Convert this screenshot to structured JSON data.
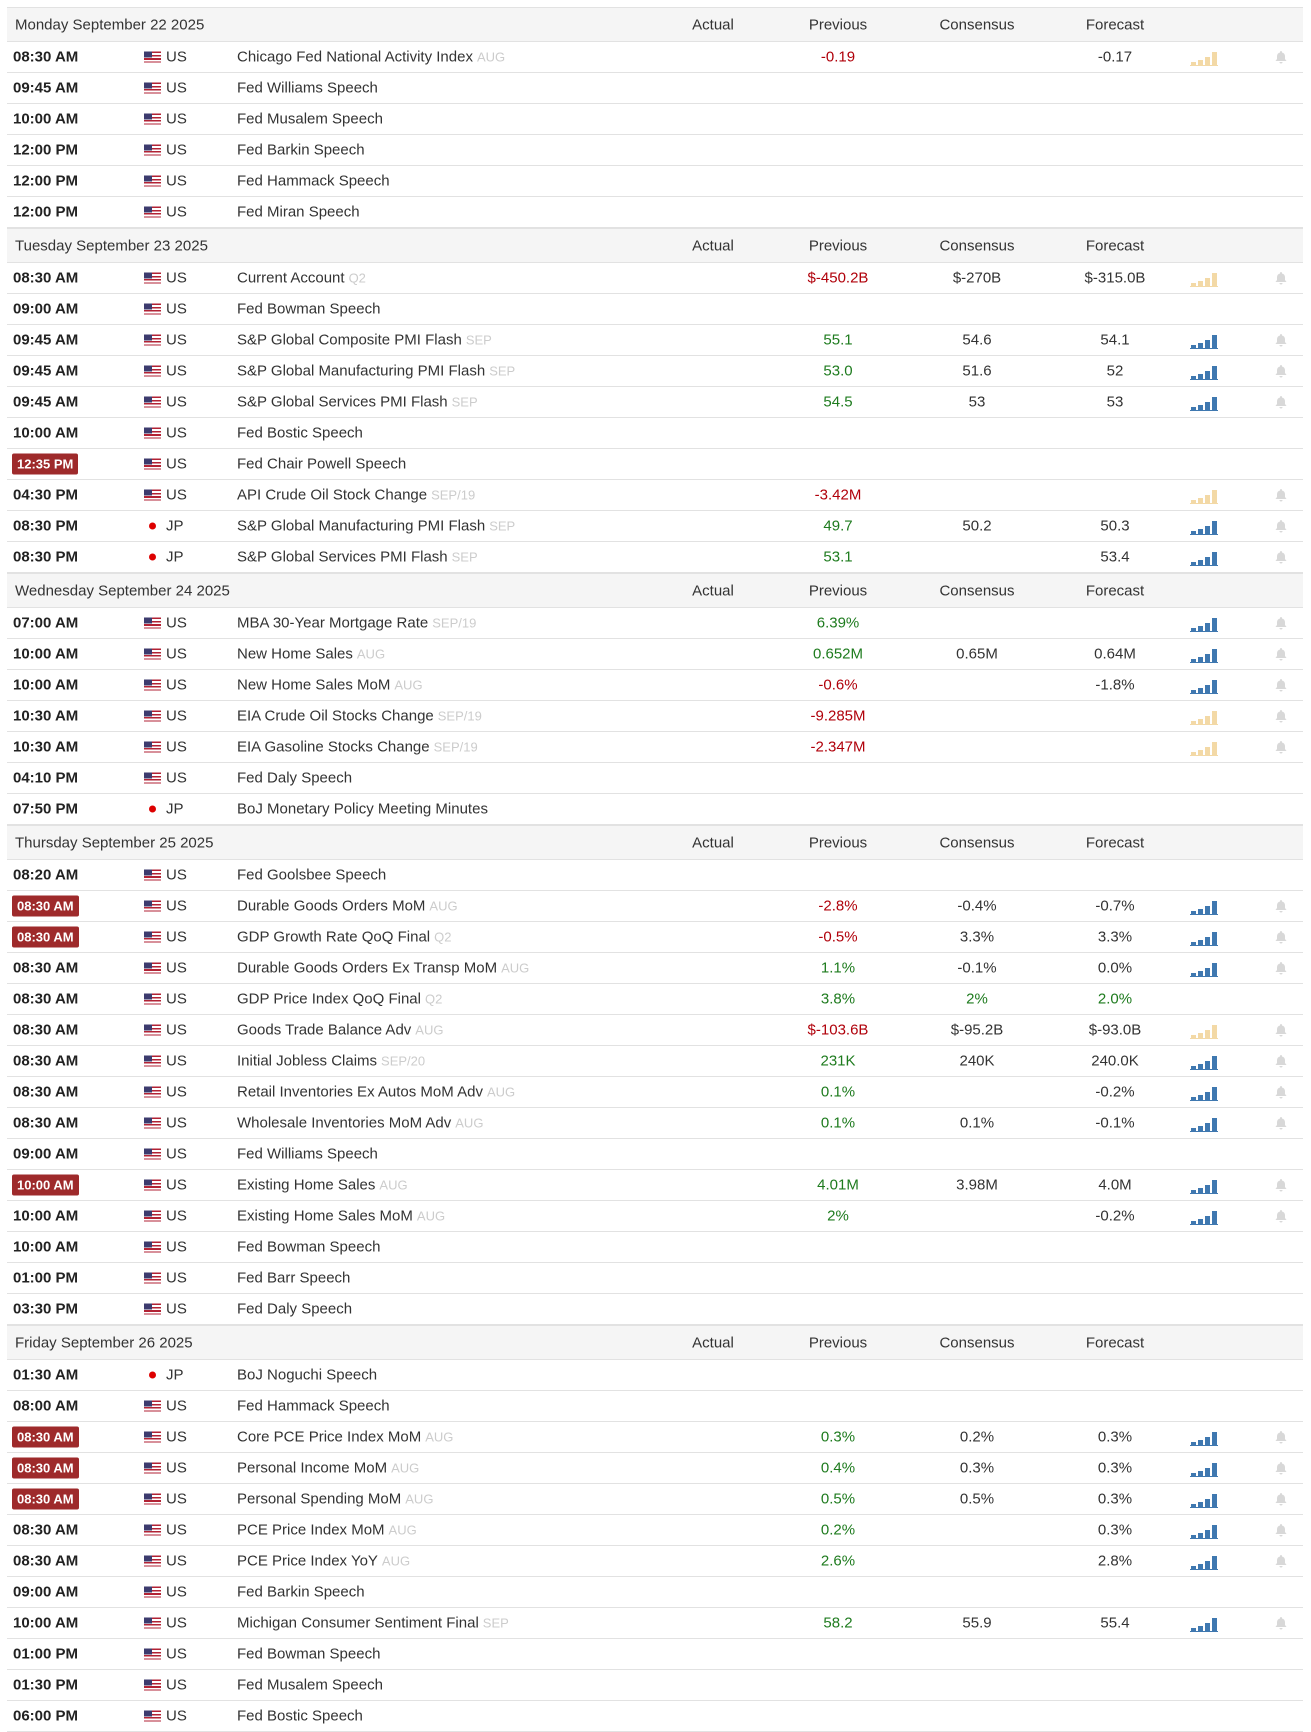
{
  "columns": [
    "Actual",
    "Previous",
    "Consensus",
    "Forecast"
  ],
  "days": [
    {
      "title": "Monday September 22 2025",
      "events": [
        {
          "t": "08:30 AM",
          "c": "US",
          "e": "Chicago Fed National Activity Index",
          "p": "AUG",
          "pv": "-0.19",
          "pc": "red",
          "fc": "-0.17",
          "spark": "tan"
        },
        {
          "t": "09:45 AM",
          "c": "US",
          "e": "Fed Williams Speech"
        },
        {
          "t": "10:00 AM",
          "c": "US",
          "e": "Fed Musalem Speech"
        },
        {
          "t": "12:00 PM",
          "c": "US",
          "e": "Fed Barkin Speech"
        },
        {
          "t": "12:00 PM",
          "c": "US",
          "e": "Fed Hammack Speech"
        },
        {
          "t": "12:00 PM",
          "c": "US",
          "e": "Fed Miran Speech"
        }
      ]
    },
    {
      "title": "Tuesday September 23 2025",
      "events": [
        {
          "t": "08:30 AM",
          "c": "US",
          "e": "Current Account",
          "p": "Q2",
          "pv": "$-450.2B",
          "pc": "red",
          "cs": "$-270B",
          "fc": "$-315.0B",
          "spark": "tan"
        },
        {
          "t": "09:00 AM",
          "c": "US",
          "e": "Fed Bowman Speech"
        },
        {
          "t": "09:45 AM",
          "c": "US",
          "e": "S&P Global Composite PMI Flash",
          "p": "SEP",
          "pv": "55.1",
          "pc": "green",
          "cs": "54.6",
          "fc": "54.1",
          "spark": "blue"
        },
        {
          "t": "09:45 AM",
          "c": "US",
          "e": "S&P Global Manufacturing PMI Flash",
          "p": "SEP",
          "pv": "53.0",
          "pc": "green",
          "cs": "51.6",
          "fc": "52",
          "spark": "blue"
        },
        {
          "t": "09:45 AM",
          "c": "US",
          "e": "S&P Global Services PMI Flash",
          "p": "SEP",
          "pv": "54.5",
          "pc": "green",
          "cs": "53",
          "fc": "53",
          "spark": "blue"
        },
        {
          "t": "10:00 AM",
          "c": "US",
          "e": "Fed Bostic Speech"
        },
        {
          "t": "12:35 PM",
          "hl": true,
          "c": "US",
          "e": "Fed Chair Powell Speech"
        },
        {
          "t": "04:30 PM",
          "c": "US",
          "e": "API Crude Oil Stock Change",
          "p": "SEP/19",
          "pv": "-3.42M",
          "pc": "red",
          "spark": "tan"
        },
        {
          "t": "08:30 PM",
          "c": "JP",
          "e": "S&P Global Manufacturing PMI Flash",
          "p": "SEP",
          "pv": "49.7",
          "pc": "green",
          "cs": "50.2",
          "fc": "50.3",
          "spark": "blue"
        },
        {
          "t": "08:30 PM",
          "c": "JP",
          "e": "S&P Global Services PMI Flash",
          "p": "SEP",
          "pv": "53.1",
          "pc": "green",
          "fc": "53.4",
          "spark": "blue"
        }
      ]
    },
    {
      "title": "Wednesday September 24 2025",
      "events": [
        {
          "t": "07:00 AM",
          "c": "US",
          "e": "MBA 30-Year Mortgage Rate",
          "p": "SEP/19",
          "pv": "6.39%",
          "pc": "green",
          "spark": "blue"
        },
        {
          "t": "10:00 AM",
          "c": "US",
          "e": "New Home Sales",
          "p": "AUG",
          "pv": "0.652M",
          "pc": "green",
          "cs": "0.65M",
          "fc": "0.64M",
          "spark": "blue"
        },
        {
          "t": "10:00 AM",
          "c": "US",
          "e": "New Home Sales MoM",
          "p": "AUG",
          "pv": "-0.6%",
          "pc": "red",
          "fc": "-1.8%",
          "spark": "blue"
        },
        {
          "t": "10:30 AM",
          "c": "US",
          "e": "EIA Crude Oil Stocks Change",
          "p": "SEP/19",
          "pv": "-9.285M",
          "pc": "red",
          "spark": "tan"
        },
        {
          "t": "10:30 AM",
          "c": "US",
          "e": "EIA Gasoline Stocks Change",
          "p": "SEP/19",
          "pv": "-2.347M",
          "pc": "red",
          "spark": "tan"
        },
        {
          "t": "04:10 PM",
          "c": "US",
          "e": "Fed Daly Speech"
        },
        {
          "t": "07:50 PM",
          "c": "JP",
          "e": "BoJ Monetary Policy Meeting Minutes"
        }
      ]
    },
    {
      "title": "Thursday September 25 2025",
      "events": [
        {
          "t": "08:20 AM",
          "c": "US",
          "e": "Fed Goolsbee Speech"
        },
        {
          "t": "08:30 AM",
          "hl": true,
          "c": "US",
          "e": "Durable Goods Orders MoM",
          "p": "AUG",
          "pv": "-2.8%",
          "pc": "red",
          "cs": "-0.4%",
          "fc": "-0.7%",
          "spark": "blue"
        },
        {
          "t": "08:30 AM",
          "hl": true,
          "c": "US",
          "e": "GDP Growth Rate QoQ Final",
          "p": "Q2",
          "pv": "-0.5%",
          "pc": "red",
          "cs": "3.3%",
          "fc": "3.3%",
          "spark": "blue"
        },
        {
          "t": "08:30 AM",
          "c": "US",
          "e": "Durable Goods Orders Ex Transp MoM",
          "p": "AUG",
          "pv": "1.1%",
          "pc": "green",
          "cs": "-0.1%",
          "fc": "0.0%",
          "spark": "blue"
        },
        {
          "t": "08:30 AM",
          "c": "US",
          "e": "GDP Price Index QoQ Final",
          "p": "Q2",
          "pv": "3.8%",
          "pc": "green",
          "cs": "2%",
          "cc": "green",
          "fc": "2.0%",
          "fcc": "green"
        },
        {
          "t": "08:30 AM",
          "c": "US",
          "e": "Goods Trade Balance Adv",
          "p": "AUG",
          "pv": "$-103.6B",
          "pc": "red",
          "cs": "$-95.2B",
          "fc": "$-93.0B",
          "spark": "tan"
        },
        {
          "t": "08:30 AM",
          "c": "US",
          "e": "Initial Jobless Claims",
          "p": "SEP/20",
          "pv": "231K",
          "pc": "green",
          "cs": "240K",
          "fc": "240.0K",
          "spark": "blue"
        },
        {
          "t": "08:30 AM",
          "c": "US",
          "e": "Retail Inventories Ex Autos MoM Adv",
          "p": "AUG",
          "pv": "0.1%",
          "pc": "green",
          "fc": "-0.2%",
          "spark": "blue"
        },
        {
          "t": "08:30 AM",
          "c": "US",
          "e": "Wholesale Inventories MoM Adv",
          "p": "AUG",
          "pv": "0.1%",
          "pc": "green",
          "cs": "0.1%",
          "fc": "-0.1%",
          "spark": "blue"
        },
        {
          "t": "09:00 AM",
          "c": "US",
          "e": "Fed Williams Speech"
        },
        {
          "t": "10:00 AM",
          "hl": true,
          "c": "US",
          "e": "Existing Home Sales",
          "p": "AUG",
          "pv": "4.01M",
          "pc": "green",
          "cs": "3.98M",
          "fc": "4.0M",
          "spark": "blue"
        },
        {
          "t": "10:00 AM",
          "c": "US",
          "e": "Existing Home Sales MoM",
          "p": "AUG",
          "pv": "2%",
          "pc": "green",
          "fc": "-0.2%",
          "spark": "blue"
        },
        {
          "t": "10:00 AM",
          "c": "US",
          "e": "Fed Bowman Speech"
        },
        {
          "t": "01:00 PM",
          "c": "US",
          "e": "Fed Barr Speech"
        },
        {
          "t": "03:30 PM",
          "c": "US",
          "e": "Fed Daly Speech"
        }
      ]
    },
    {
      "title": "Friday September 26 2025",
      "events": [
        {
          "t": "01:30 AM",
          "c": "JP",
          "e": "BoJ Noguchi Speech"
        },
        {
          "t": "08:00 AM",
          "c": "US",
          "e": "Fed Hammack Speech"
        },
        {
          "t": "08:30 AM",
          "hl": true,
          "c": "US",
          "e": "Core PCE Price Index MoM",
          "p": "AUG",
          "pv": "0.3%",
          "pc": "green",
          "cs": "0.2%",
          "fc": "0.3%",
          "spark": "blue"
        },
        {
          "t": "08:30 AM",
          "hl": true,
          "c": "US",
          "e": "Personal Income MoM",
          "p": "AUG",
          "pv": "0.4%",
          "pc": "green",
          "cs": "0.3%",
          "fc": "0.3%",
          "spark": "blue"
        },
        {
          "t": "08:30 AM",
          "hl": true,
          "c": "US",
          "e": "Personal Spending MoM",
          "p": "AUG",
          "pv": "0.5%",
          "pc": "green",
          "cs": "0.5%",
          "fc": "0.3%",
          "spark": "blue"
        },
        {
          "t": "08:30 AM",
          "c": "US",
          "e": "PCE Price Index MoM",
          "p": "AUG",
          "pv": "0.2%",
          "pc": "green",
          "fc": "0.3%",
          "spark": "blue"
        },
        {
          "t": "08:30 AM",
          "c": "US",
          "e": "PCE Price Index YoY",
          "p": "AUG",
          "pv": "2.6%",
          "pc": "green",
          "fc": "2.8%",
          "spark": "blue"
        },
        {
          "t": "09:00 AM",
          "c": "US",
          "e": "Fed Barkin Speech"
        },
        {
          "t": "10:00 AM",
          "c": "US",
          "e": "Michigan Consumer Sentiment Final",
          "p": "SEP",
          "pv": "58.2",
          "pc": "green",
          "cs": "55.9",
          "fc": "55.4",
          "spark": "blue"
        },
        {
          "t": "01:00 PM",
          "c": "US",
          "e": "Fed Bowman Speech"
        },
        {
          "t": "01:30 PM",
          "c": "US",
          "e": "Fed Musalem Speech"
        },
        {
          "t": "06:00 PM",
          "c": "US",
          "e": "Fed Bostic Speech"
        }
      ]
    }
  ]
}
